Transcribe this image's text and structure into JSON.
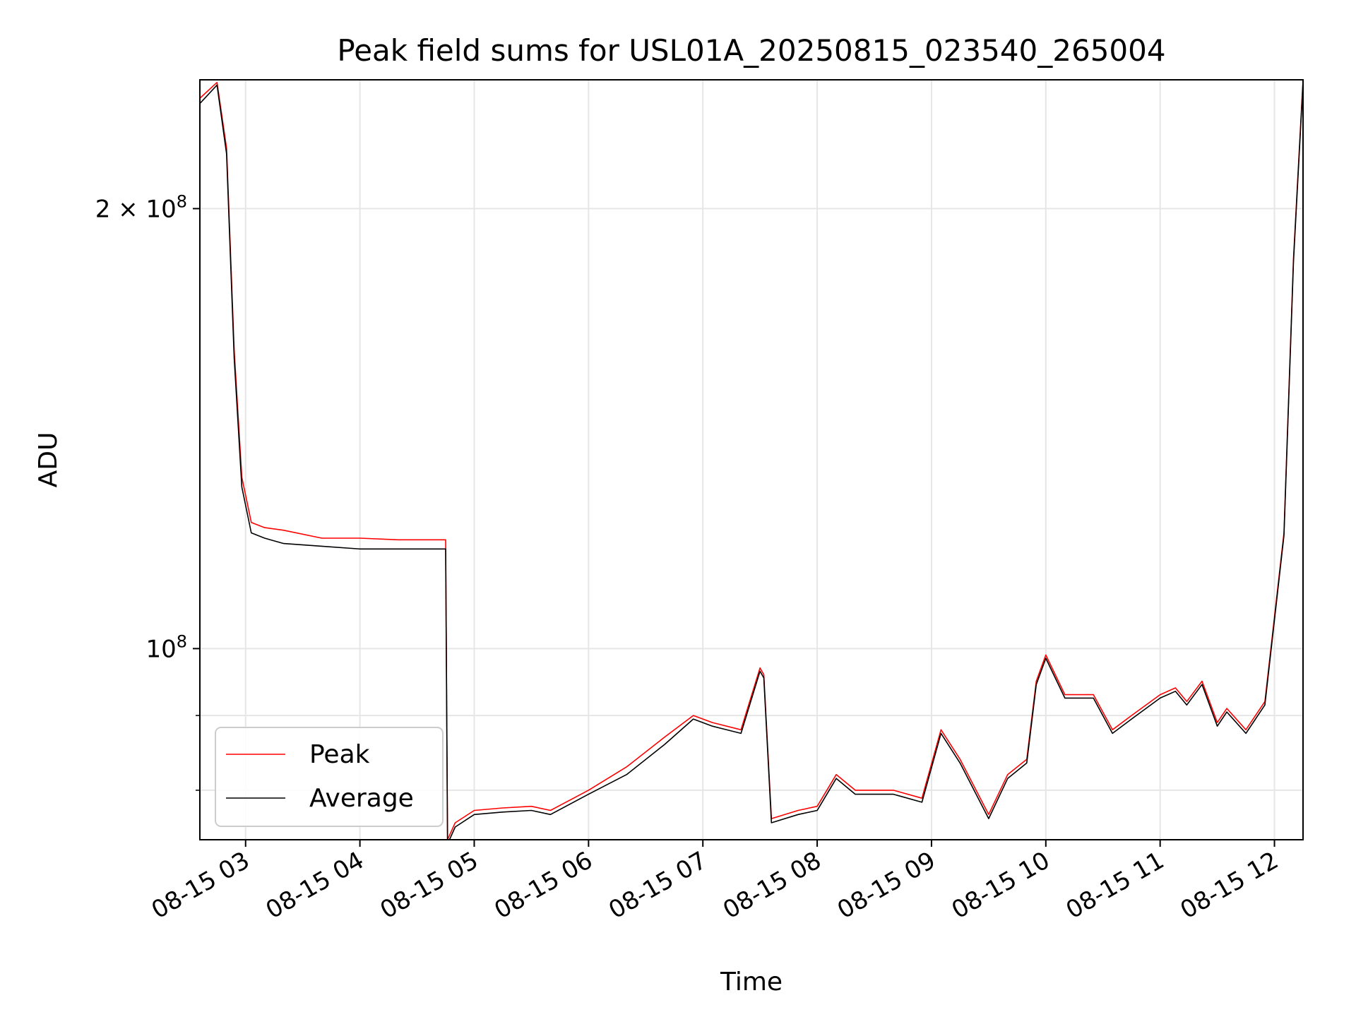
{
  "chart_data": {
    "type": "line",
    "title": "Peak field sums for USL01A_20250815_023540_265004",
    "xlabel": "Time",
    "ylabel": "ADU",
    "y_scale": "log",
    "xlim": [
      "08-15 02:36",
      "08-15 12:15"
    ],
    "ylim": [
      74000000,
      245000000
    ],
    "grid": true,
    "legend_position": "lower-left",
    "x_ticks": [
      "08-15 03",
      "08-15 04",
      "08-15 05",
      "08-15 06",
      "08-15 07",
      "08-15 08",
      "08-15 09",
      "08-15 10",
      "08-15 11",
      "08-15 12"
    ],
    "y_ticks": [
      {
        "value": 100000000,
        "mantissa": "",
        "exponent": "8"
      },
      {
        "value": 200000000,
        "mantissa": "2",
        "exponent": "8"
      }
    ],
    "x": [
      "08-15 02:36",
      "08-15 02:45",
      "08-15 02:50",
      "08-15 02:54",
      "08-15 02:58",
      "08-15 03:03",
      "08-15 03:10",
      "08-15 03:20",
      "08-15 03:40",
      "08-15 04:00",
      "08-15 04:20",
      "08-15 04:45",
      "08-15 04:46",
      "08-15 04:50",
      "08-15 05:00",
      "08-15 05:15",
      "08-15 05:30",
      "08-15 05:40",
      "08-15 06:00",
      "08-15 06:20",
      "08-15 06:40",
      "08-15 06:55",
      "08-15 07:05",
      "08-15 07:20",
      "08-15 07:30",
      "08-15 07:32",
      "08-15 07:36",
      "08-15 07:50",
      "08-15 08:00",
      "08-15 08:10",
      "08-15 08:20",
      "08-15 08:40",
      "08-15 08:55",
      "08-15 09:05",
      "08-15 09:15",
      "08-15 09:30",
      "08-15 09:40",
      "08-15 09:50",
      "08-15 09:55",
      "08-15 10:00",
      "08-15 10:10",
      "08-15 10:25",
      "08-15 10:35",
      "08-15 10:45",
      "08-15 11:00",
      "08-15 11:08",
      "08-15 11:14",
      "08-15 11:22",
      "08-15 11:30",
      "08-15 11:35",
      "08-15 11:45",
      "08-15 11:55",
      "08-15 12:05",
      "08-15 12:10",
      "08-15 12:15"
    ],
    "series": [
      {
        "name": "Peak",
        "color": "#ff0000",
        "values": [
          238000000,
          244000000,
          220000000,
          160000000,
          131000000,
          122000000,
          121000000,
          120500000,
          119000000,
          119000000,
          118700000,
          118700000,
          74000000,
          76000000,
          77500000,
          77800000,
          78000000,
          77500000,
          80000000,
          83000000,
          87000000,
          90000000,
          89000000,
          88000000,
          97000000,
          96000000,
          76500000,
          77500000,
          78000000,
          82000000,
          80000000,
          80000000,
          79000000,
          88000000,
          84000000,
          77000000,
          82000000,
          84000000,
          95000000,
          99000000,
          93000000,
          93000000,
          88000000,
          90000000,
          93000000,
          94000000,
          92000000,
          95000000,
          89000000,
          91000000,
          88000000,
          92000000,
          120000000,
          185000000,
          245000000
        ]
      },
      {
        "name": "Average",
        "color": "#000000",
        "values": [
          236000000,
          243000000,
          218000000,
          158000000,
          129000000,
          120000000,
          119000000,
          118000000,
          117500000,
          117000000,
          117000000,
          117000000,
          73500000,
          75500000,
          77000000,
          77300000,
          77500000,
          77000000,
          79500000,
          82000000,
          86000000,
          89500000,
          88500000,
          87500000,
          96500000,
          95500000,
          76000000,
          77000000,
          77500000,
          81500000,
          79500000,
          79500000,
          78500000,
          87500000,
          83500000,
          76500000,
          81500000,
          83500000,
          94500000,
          98500000,
          92500000,
          92500000,
          87500000,
          89500000,
          92500000,
          93500000,
          91500000,
          94500000,
          88500000,
          90500000,
          87500000,
          91500000,
          119500000,
          184000000,
          244000000
        ]
      }
    ]
  }
}
